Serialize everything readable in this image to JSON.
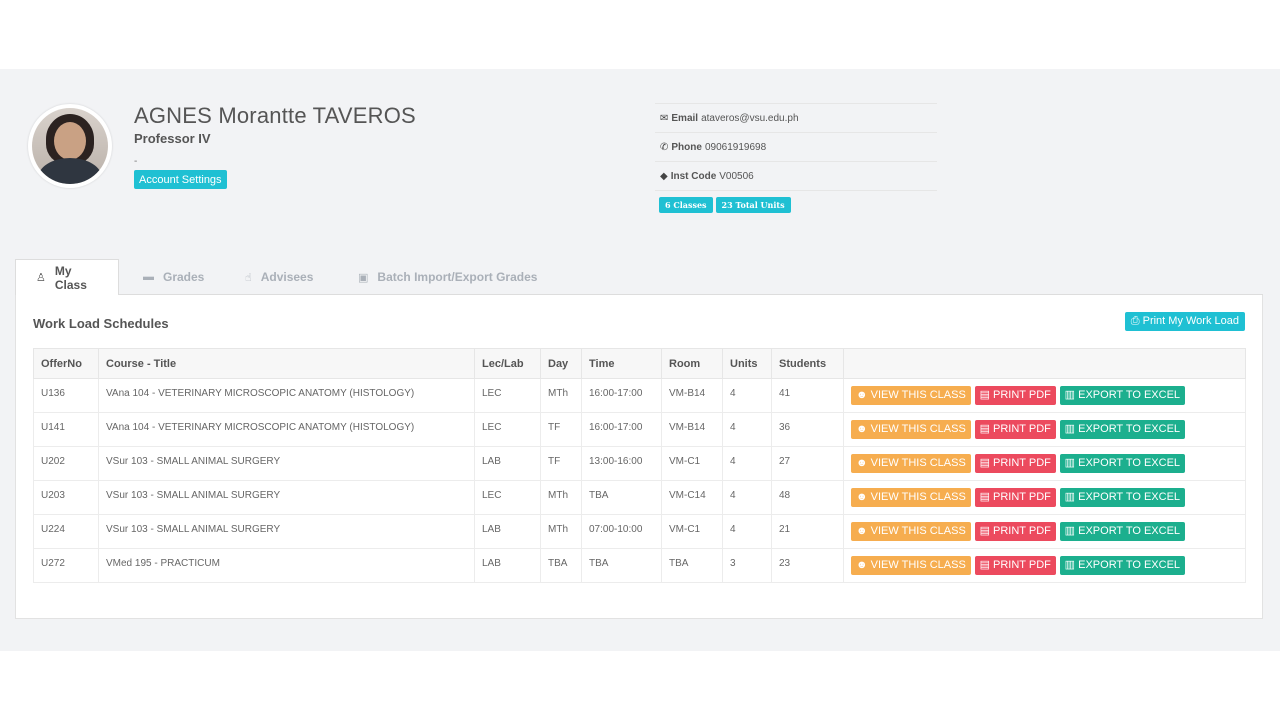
{
  "profile": {
    "name": "AGNES Morantte TAVEROS",
    "role": "Professor IV",
    "dash": "-",
    "account_settings_label": "Account Settings"
  },
  "contact": {
    "email_label": "Email",
    "email": "ataveros@vsu.edu.ph",
    "phone_label": "Phone",
    "phone": "09061919698",
    "inst_label": "Inst Code",
    "inst_code": "V00506"
  },
  "badges": {
    "classes": "6 Classes",
    "units": "23 Total Units"
  },
  "tabs": [
    {
      "label": "My Class",
      "icon": "person-icon"
    },
    {
      "label": "Grades",
      "icon": "folder-icon"
    },
    {
      "label": "Advisees",
      "icon": "thumbs-up-icon"
    },
    {
      "label": "Batch Import/Export Grades",
      "icon": "image-icon"
    }
  ],
  "panel": {
    "title": "Work Load Schedules",
    "print_label": "Print My Work Load"
  },
  "table": {
    "headers": [
      "OfferNo",
      "Course - Title",
      "Lec/Lab",
      "Day",
      "Time",
      "Room",
      "Units",
      "Students",
      ""
    ],
    "actions": {
      "view": "VIEW THIS CLASS",
      "pdf": "PRINT PDF",
      "excel": "EXPORT TO EXCEL"
    },
    "rows": [
      [
        "U136",
        "VAna 104 - VETERINARY MICROSCOPIC ANATOMY (HISTOLOGY)",
        "LEC",
        "MTh",
        "16:00-17:00",
        "VM-B14",
        "4",
        "41"
      ],
      [
        "U141",
        "VAna 104 - VETERINARY MICROSCOPIC ANATOMY (HISTOLOGY)",
        "LEC",
        "TF",
        "16:00-17:00",
        "VM-B14",
        "4",
        "36"
      ],
      [
        "U202",
        "VSur 103 - SMALL ANIMAL SURGERY",
        "LAB",
        "TF",
        "13:00-16:00",
        "VM-C1",
        "4",
        "27"
      ],
      [
        "U203",
        "VSur 103 - SMALL ANIMAL SURGERY",
        "LEC",
        "MTh",
        "TBA",
        "VM-C14",
        "4",
        "48"
      ],
      [
        "U224",
        "VSur 103 - SMALL ANIMAL SURGERY",
        "LAB",
        "MTh",
        "07:00-10:00",
        "VM-C1",
        "4",
        "21"
      ],
      [
        "U272",
        "VMed 195 - PRACTICUM",
        "LAB",
        "TBA",
        "TBA",
        "TBA",
        "3",
        "23"
      ]
    ]
  }
}
